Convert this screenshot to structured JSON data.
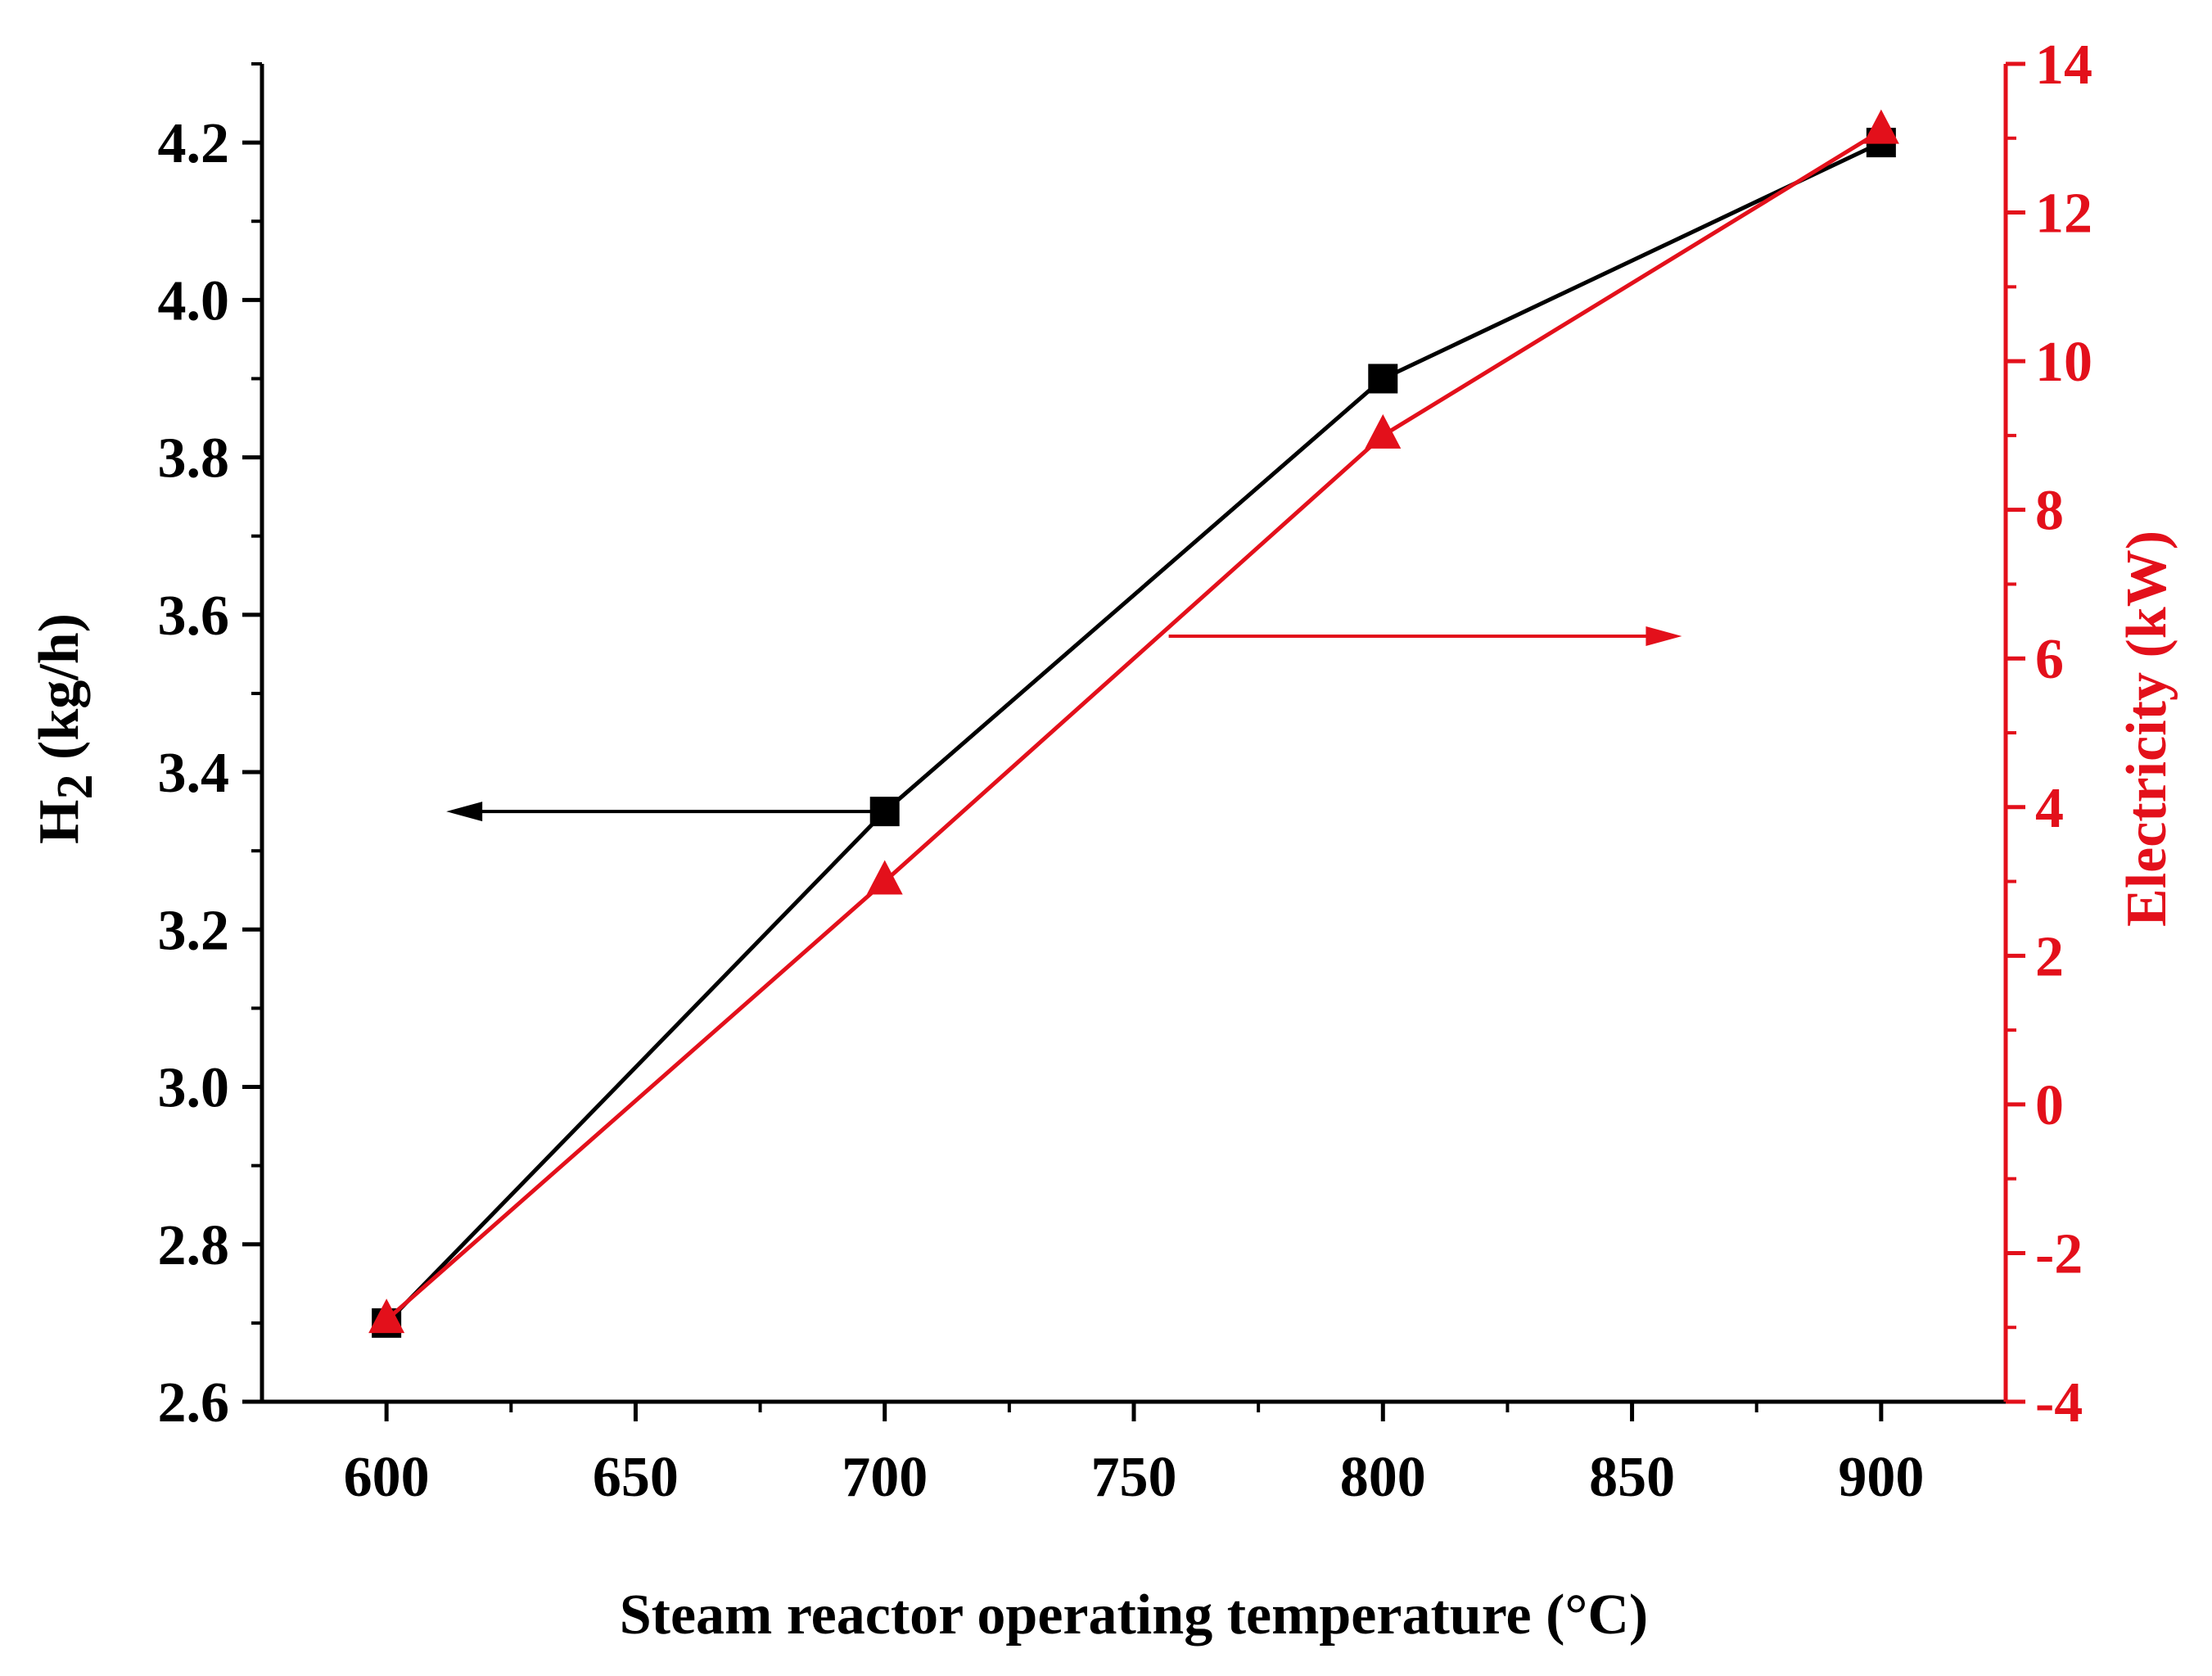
{
  "chart_data": {
    "type": "line",
    "x": [
      600,
      700,
      800,
      900
    ],
    "xlim": [
      575,
      925
    ],
    "xticks": [
      600,
      650,
      700,
      750,
      800,
      850,
      900
    ],
    "xlabel": "Steam reactor operating temperature (°C)",
    "y_left": {
      "label_main": "H",
      "label_sub": "2",
      "label_rest": " (kg/h)",
      "ylim": [
        2.6,
        4.3
      ],
      "ticks": [
        "2.6",
        "2.8",
        "3.0",
        "3.2",
        "3.4",
        "3.6",
        "3.8",
        "4.0",
        "4.2"
      ]
    },
    "y_right": {
      "label": "Electricity (kW)",
      "ylim": [
        -4,
        14
      ],
      "ticks": [
        "-4",
        "-2",
        "0",
        "2",
        "4",
        "6",
        "8",
        "10",
        "12",
        "14"
      ]
    },
    "series": [
      {
        "name": "H2",
        "axis": "left",
        "marker": "square",
        "color": "#000000",
        "values": [
          2.7,
          3.35,
          3.9,
          4.2
        ]
      },
      {
        "name": "Electricity",
        "axis": "right",
        "marker": "triangle",
        "color": "#e3101b",
        "values": [
          -2.9,
          3.0,
          9.0,
          13.1
        ]
      }
    ],
    "annotations": [
      {
        "name": "left-arrow",
        "series": "H2",
        "direction": "left",
        "from_x": 700,
        "to_x": 612,
        "y": 3.35
      },
      {
        "name": "right-arrow",
        "series": "Electricity",
        "direction": "right",
        "from_x": 757,
        "to_x": 860,
        "y": 6.3
      }
    ]
  },
  "colors": {
    "left_axis": "#000000",
    "right_axis": "#e3101b"
  }
}
